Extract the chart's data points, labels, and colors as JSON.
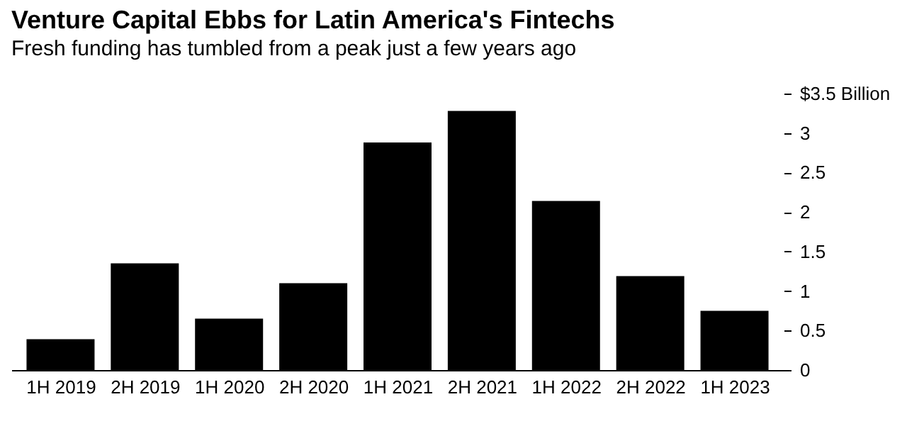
{
  "chart_data": {
    "type": "bar",
    "title": "Venture Capital Ebbs for Latin America's Fintechs",
    "subtitle": "Fresh funding has tumbled from a peak just a few years ago",
    "categories": [
      "1H 2019",
      "2H 2019",
      "1H 2020",
      "2H 2020",
      "1H 2021",
      "2H 2021",
      "1H 2022",
      "2H 2022",
      "1H 2023"
    ],
    "values": [
      0.39,
      1.35,
      0.65,
      1.1,
      2.88,
      3.28,
      2.14,
      1.19,
      0.75
    ],
    "color": "#000000",
    "ylim": [
      0,
      3.5
    ],
    "yticks": [
      0,
      0.5,
      1,
      1.5,
      2,
      2.5,
      3,
      {
        "value": 3.5,
        "label": "$3.5 Billion"
      }
    ],
    "grid": false
  }
}
